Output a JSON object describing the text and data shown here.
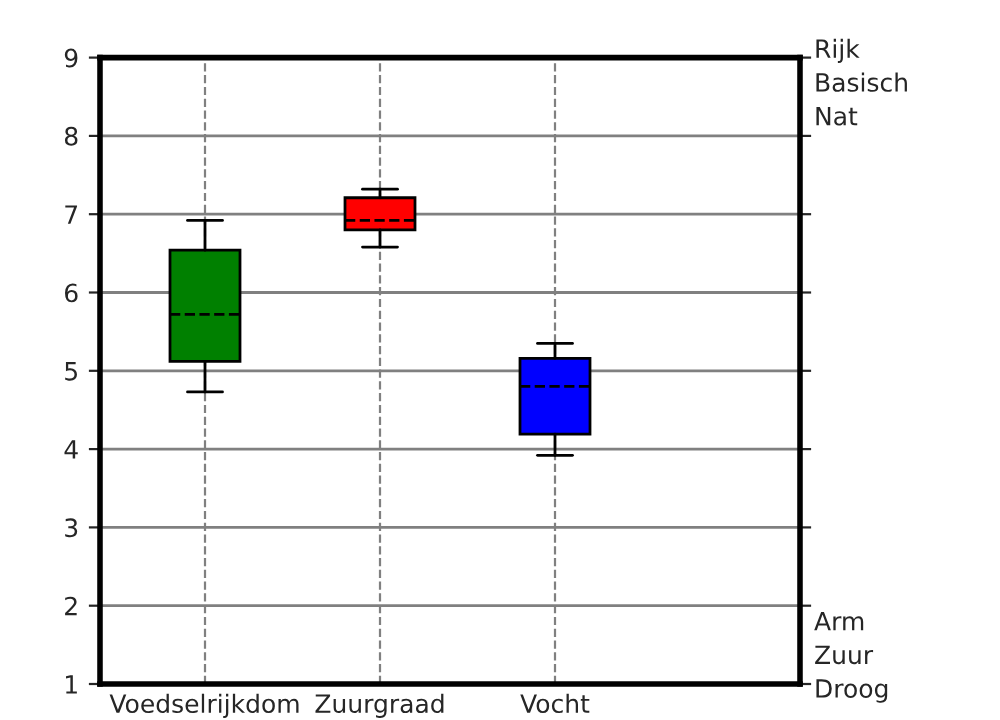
{
  "chart_data": {
    "type": "box",
    "categories": [
      "Voedselrijkdom",
      "Zuurgraad",
      "Vocht"
    ],
    "boxes": [
      {
        "low": 4.73,
        "q1": 5.12,
        "median": 5.72,
        "q3": 6.54,
        "high": 6.92
      },
      {
        "low": 6.58,
        "q1": 6.8,
        "median": 6.92,
        "q3": 7.21,
        "high": 7.32
      },
      {
        "low": 3.92,
        "q1": 4.19,
        "median": 4.8,
        "q3": 5.16,
        "high": 5.35
      }
    ],
    "colors": [
      "#008000",
      "#ff0000",
      "#0000ff"
    ],
    "ylim": [
      1,
      9
    ],
    "yticks": [
      1,
      2,
      3,
      4,
      5,
      6,
      7,
      8,
      9
    ],
    "grid": true,
    "annotations": [
      "Rijk\nBasisch\nNat",
      "Arm\nZuur\nDroog"
    ]
  }
}
